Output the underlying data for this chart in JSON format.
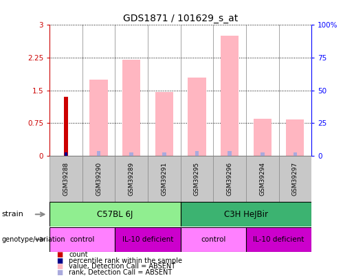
{
  "title": "GDS1871 / 101629_s_at",
  "samples": [
    "GSM39288",
    "GSM39290",
    "GSM39289",
    "GSM39291",
    "GSM39295",
    "GSM39296",
    "GSM39294",
    "GSM39297"
  ],
  "count_values": [
    1.35,
    0,
    0,
    0,
    0,
    0,
    0,
    0
  ],
  "percentile_rank_values": [
    0.08,
    0,
    0,
    0,
    0,
    0,
    0,
    0
  ],
  "value_absent": [
    0,
    1.75,
    2.2,
    1.47,
    1.8,
    2.75,
    0.85,
    0.83
  ],
  "rank_absent": [
    0.07,
    0.1,
    0.07,
    0.07,
    0.1,
    0.1,
    0.07,
    0.07
  ],
  "ylim_left": [
    0,
    3
  ],
  "ylim_right": [
    0,
    100
  ],
  "yticks_left": [
    0,
    0.75,
    1.5,
    2.25,
    3
  ],
  "ytick_labels_left": [
    "0",
    "0.75",
    "1.5",
    "2.25",
    "3"
  ],
  "yticks_right": [
    0,
    25,
    50,
    75,
    100
  ],
  "ytick_labels_right": [
    "0",
    "25",
    "50",
    "75",
    "100%"
  ],
  "strain_groups": [
    {
      "label": "C57BL 6J",
      "start": 0,
      "end": 4,
      "color": "#90EE90"
    },
    {
      "label": "C3H HeJBir",
      "start": 4,
      "end": 8,
      "color": "#3CB371"
    }
  ],
  "genotype_groups": [
    {
      "label": "control",
      "start": 0,
      "end": 2,
      "color": "#FF80FF"
    },
    {
      "label": "IL-10 deficient",
      "start": 2,
      "end": 4,
      "color": "#CC00CC"
    },
    {
      "label": "control",
      "start": 4,
      "end": 6,
      "color": "#FF80FF"
    },
    {
      "label": "IL-10 deficient",
      "start": 6,
      "end": 8,
      "color": "#CC00CC"
    }
  ],
  "legend_items": [
    {
      "color": "#CC0000",
      "label": "count"
    },
    {
      "color": "#00008B",
      "label": "percentile rank within the sample"
    },
    {
      "color": "#FFB6C1",
      "label": "value, Detection Call = ABSENT"
    },
    {
      "color": "#AAAADD",
      "label": "rank, Detection Call = ABSENT"
    }
  ],
  "count_color": "#CC0000",
  "percentile_color": "#00008B",
  "value_absent_color": "#FFB6C1",
  "rank_absent_color": "#AAAADD",
  "left_axis_color": "#CC0000",
  "right_axis_color": "#0000FF",
  "sample_box_color": "#C8C8C8",
  "fig_width": 5.15,
  "fig_height": 4.05,
  "fig_dpi": 100
}
